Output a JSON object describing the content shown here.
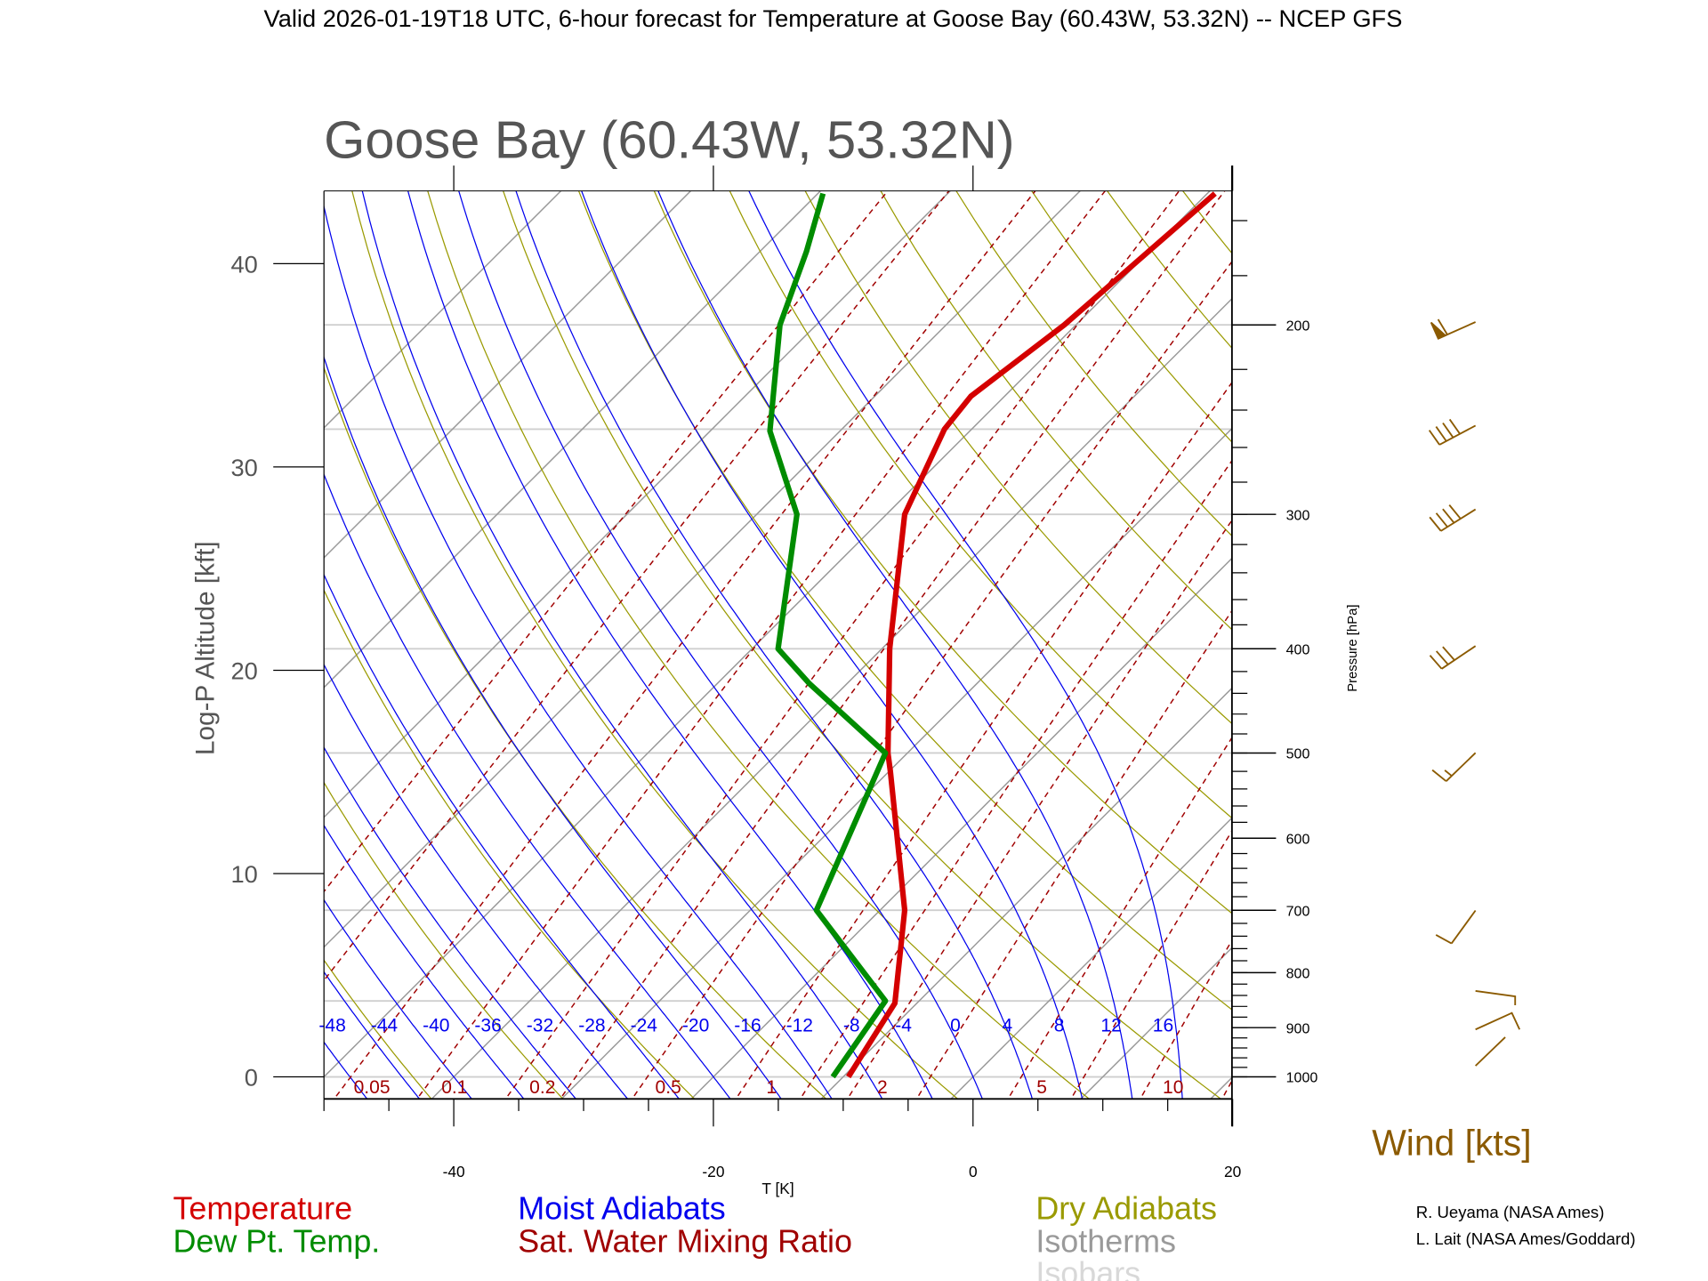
{
  "header": {
    "title": "Valid 2026-01-19T18 UTC, 6-hour forecast for Temperature at Goose Bay (60.43W, 53.32N) -- NCEP GFS"
  },
  "colors": {
    "temperature": "#d40000",
    "dewpoint": "#008c00",
    "moist": "#0000ee",
    "mixing": "#a00000",
    "dry": "#9a9a00",
    "isotherm": "#9a9a9a",
    "isobar": "#cfcfcf",
    "wind": "#8b5a00"
  },
  "chart_data": {
    "type": "line",
    "title": "Goose Bay (60.43W, 53.32N)",
    "xlabel": "T [K]",
    "ylabel": "Log-P Altitude [kft]",
    "y2label": "Pressure [hPa]",
    "xlim": [
      -50,
      20
    ],
    "plim_hpa": [
      1048,
      150
    ],
    "x_ticks": [
      "-40",
      "-20",
      "0",
      "20"
    ],
    "x_tick_values": [
      -40,
      -20,
      0,
      20
    ],
    "altitude_ticks": [
      "0",
      "10",
      "20",
      "30",
      "40"
    ],
    "altitude_tick_values": [
      0,
      10,
      20,
      30,
      40
    ],
    "pressure_ticks": [
      "1000",
      "900",
      "800",
      "700",
      "600",
      "500",
      "400",
      "300",
      "200"
    ],
    "pressure_tick_values": [
      1000,
      900,
      800,
      700,
      600,
      500,
      400,
      300,
      200
    ],
    "series": [
      {
        "name": "Temperature",
        "pressure": [
          1000,
          935,
          854,
          700,
          520,
          500,
          400,
          300,
          250,
          233,
          200,
          151
        ],
        "values": [
          -9.6,
          -10.5,
          -11.7,
          -18.1,
          -29.9,
          -31.5,
          -39.4,
          -48.6,
          -52.1,
          -52.6,
          -50.9,
          -49.4
        ]
      },
      {
        "name": "Dew Pt. Temp.",
        "pressure": [
          1000,
          850,
          700,
          500,
          431,
          400,
          300,
          251,
          200,
          171,
          151
        ],
        "values": [
          -10.8,
          -12.6,
          -24.9,
          -31.7,
          -42.9,
          -48.0,
          -56.9,
          -65.4,
          -72.8,
          -76.4,
          -79.6
        ]
      }
    ],
    "isotherms": [
      -100,
      -90,
      -80,
      -70,
      -60,
      -50,
      -40,
      -30,
      -20,
      -10,
      0,
      10,
      20,
      30,
      40
    ],
    "isobars": [
      1000,
      850,
      700,
      500,
      400,
      300,
      250,
      200
    ],
    "dry_adiabats_K": [
      220,
      230,
      240,
      250,
      260,
      270,
      280,
      290,
      300,
      310,
      320,
      330,
      340,
      350,
      360,
      370,
      380,
      390,
      400,
      410,
      420,
      430,
      440,
      450,
      460
    ],
    "moist_adiabats": {
      "values": [
        -48,
        -44,
        -40,
        -36,
        -32,
        -28,
        -24,
        -20,
        -16,
        -12,
        -8,
        -4,
        0,
        4,
        8,
        12,
        16
      ],
      "labels": [
        "-48",
        "-44",
        "-40",
        "-36",
        "-32",
        "-28",
        "-24",
        "-20",
        "-16",
        "-12",
        "-8",
        "-4",
        "0",
        "4",
        "8",
        "12",
        "16"
      ]
    },
    "mixing_ratios": {
      "values": [
        0.01,
        0.02,
        0.05,
        0.1,
        0.2,
        0.3,
        0.5,
        1,
        1.5,
        2,
        3,
        5,
        7,
        10,
        15,
        20
      ],
      "labeled": [
        0.05,
        0.1,
        0.2,
        0.5,
        1,
        2,
        5,
        10
      ],
      "labels": [
        "0.05",
        "0.1",
        "0.2",
        "0.5",
        "1",
        "2",
        "5",
        "10"
      ]
    },
    "wind_barbs": [
      {
        "pressure": 200,
        "direction_deg": 246,
        "speed_kt": 60
      },
      {
        "pressure": 250,
        "direction_deg": 242,
        "speed_kt": 40
      },
      {
        "pressure": 300,
        "direction_deg": 238,
        "speed_kt": 40
      },
      {
        "pressure": 400,
        "direction_deg": 236,
        "speed_kt": 30
      },
      {
        "pressure": 500,
        "direction_deg": 226,
        "speed_kt": 15
      },
      {
        "pressure": 700,
        "direction_deg": 216,
        "speed_kt": 10
      }
    ]
  },
  "legend": {
    "temperature": "Temperature",
    "dewpoint": "Dew Pt. Temp.",
    "moist": "Moist Adiabats",
    "mixing": "Sat. Water Mixing Ratio",
    "dry": "Dry Adiabats",
    "isotherms": "Isotherms",
    "isobars": "Isobars"
  },
  "wind_label": "Wind [kts]",
  "credits": [
    "R. Ueyama (NASA Ames)",
    "L. Lait (NASA Ames/Goddard)"
  ]
}
